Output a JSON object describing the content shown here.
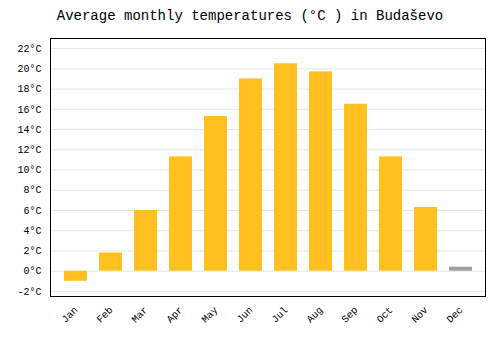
{
  "chart_data": {
    "type": "bar",
    "title": "Average monthly temperatures (°C ) in Budaševo",
    "categories": [
      "Jan",
      "Feb",
      "Mar",
      "Apr",
      "May",
      "Jun",
      "Jul",
      "Aug",
      "Sep",
      "Oct",
      "Nov",
      "Dec"
    ],
    "values": [
      -1.0,
      1.8,
      6.0,
      11.3,
      15.3,
      19.0,
      20.5,
      19.7,
      16.5,
      11.3,
      6.3,
      0.4
    ],
    "colors": [
      "#FFC020",
      "#FFC020",
      "#FFC020",
      "#FFC020",
      "#FFC020",
      "#FFC020",
      "#FFC020",
      "#FFC020",
      "#FFC020",
      "#FFC020",
      "#FFC020",
      "#A0A0A0"
    ],
    "ylim": [
      -2.5,
      23.0
    ],
    "yticks": [
      {
        "value": -2,
        "label": "-2°C"
      },
      {
        "value": 0,
        "label": "0°C"
      },
      {
        "value": 2,
        "label": "2°C"
      },
      {
        "value": 4,
        "label": "4°C"
      },
      {
        "value": 6,
        "label": "6°C"
      },
      {
        "value": 8,
        "label": "8°C"
      },
      {
        "value": 10,
        "label": "10°C"
      },
      {
        "value": 12,
        "label": "12°C"
      },
      {
        "value": 14,
        "label": "14°C"
      },
      {
        "value": 16,
        "label": "16°C"
      },
      {
        "value": 18,
        "label": "18°C"
      },
      {
        "value": 20,
        "label": "20°C"
      },
      {
        "value": 22,
        "label": "22°C"
      }
    ],
    "grid": true
  }
}
